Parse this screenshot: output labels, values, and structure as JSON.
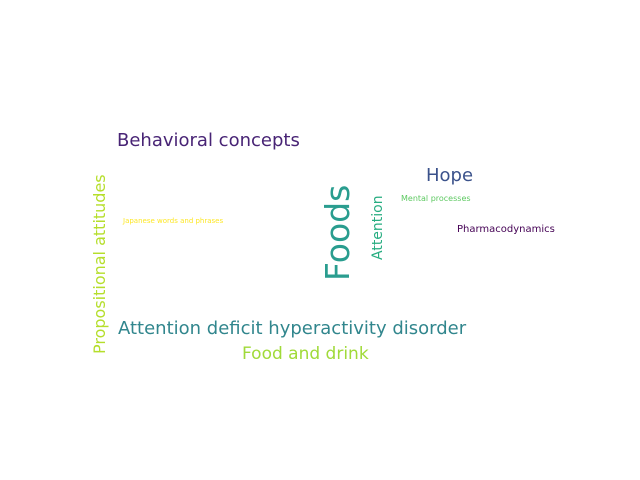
{
  "words": [
    {
      "key": "propositional",
      "text": "Propositional attitudes",
      "color": "#b5de2b"
    },
    {
      "key": "behavioral",
      "text": "Behavioral concepts",
      "color": "#482475"
    },
    {
      "key": "japanese",
      "text": "Japanese words and phrases",
      "color": "#fde725"
    },
    {
      "key": "foods",
      "text": "Foods",
      "color": "#2a9d8f"
    },
    {
      "key": "attention",
      "text": "Attention",
      "color": "#27ad81"
    },
    {
      "key": "hope",
      "text": "Hope",
      "color": "#3b528b"
    },
    {
      "key": "mental",
      "text": "Mental processes",
      "color": "#5ec962"
    },
    {
      "key": "pharmaco",
      "text": "Pharmacodynamics",
      "color": "#440154"
    },
    {
      "key": "adhd",
      "text": "Attention deficit hyperactivity disorder",
      "color": "#31868d"
    },
    {
      "key": "food_drink",
      "text": "Food and drink",
      "color": "#a0da39"
    }
  ]
}
